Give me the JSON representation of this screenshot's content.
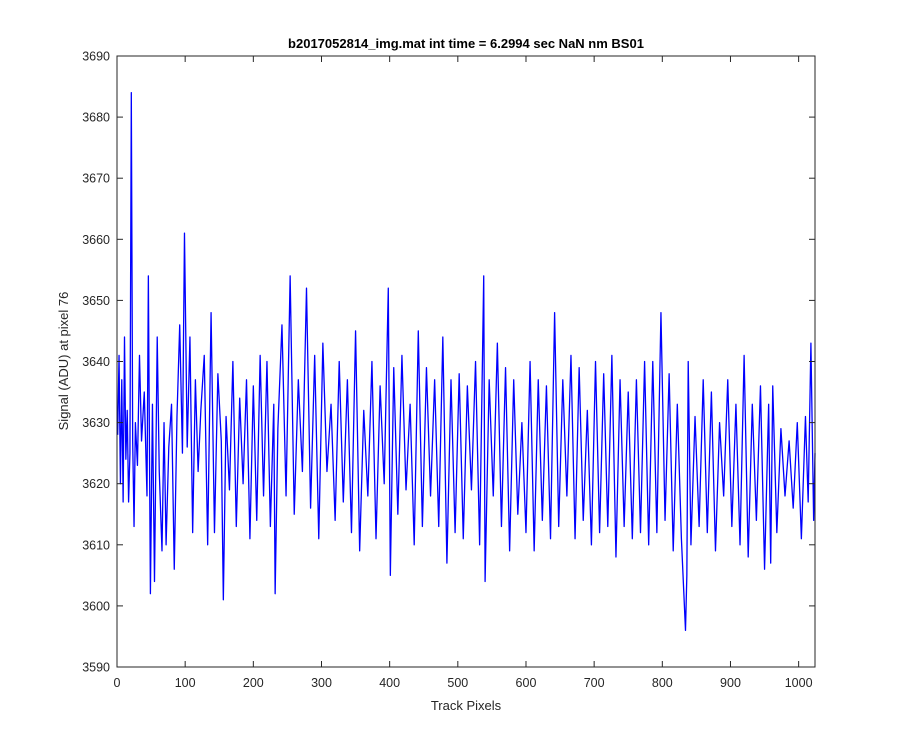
{
  "chart_data": {
    "type": "line",
    "title": "b2017052814_img.mat int time = 6.2994 sec  NaN nm BS01",
    "xlabel": "Track Pixels",
    "ylabel": "Signal (ADU) at pixel 76",
    "xlim": [
      0,
      1024
    ],
    "ylim": [
      3590,
      3690
    ],
    "xticks": [
      0,
      100,
      200,
      300,
      400,
      500,
      600,
      700,
      800,
      900,
      1000
    ],
    "yticks": [
      3590,
      3600,
      3610,
      3620,
      3630,
      3640,
      3650,
      3660,
      3670,
      3680,
      3690
    ],
    "grid": false,
    "line_color": "#0000ff",
    "series": [
      {
        "x": [
          1,
          3,
          5,
          7,
          9,
          11,
          13,
          15,
          17,
          19,
          21,
          23,
          25,
          27,
          30,
          33,
          36,
          40,
          44,
          46,
          49,
          52,
          55,
          59,
          62,
          66,
          69,
          72,
          76,
          80,
          84,
          88,
          92,
          96,
          99,
          103,
          107,
          111,
          115,
          119,
          123,
          128,
          133,
          138,
          143,
          148,
          153,
          156,
          160,
          165,
          170,
          175,
          180,
          185,
          190,
          195,
          200,
          205,
          210,
          215,
          220,
          225,
          230,
          232,
          236,
          242,
          248,
          254,
          260,
          266,
          272,
          278,
          284,
          290,
          296,
          302,
          308,
          314,
          320,
          326,
          332,
          338,
          344,
          350,
          356,
          362,
          368,
          374,
          380,
          386,
          392,
          398,
          401,
          406,
          412,
          418,
          424,
          430,
          436,
          442,
          448,
          454,
          460,
          466,
          472,
          478,
          484,
          490,
          496,
          502,
          508,
          514,
          520,
          526,
          532,
          538,
          540,
          546,
          552,
          558,
          564,
          570,
          576,
          582,
          588,
          594,
          600,
          606,
          612,
          618,
          624,
          630,
          636,
          642,
          648,
          654,
          660,
          666,
          672,
          678,
          684,
          690,
          696,
          702,
          708,
          714,
          720,
          726,
          732,
          738,
          744,
          750,
          756,
          762,
          768,
          774,
          780,
          786,
          792,
          798,
          804,
          810,
          816,
          822,
          828,
          834,
          836,
          838,
          842,
          848,
          854,
          860,
          866,
          872,
          878,
          884,
          890,
          896,
          902,
          908,
          914,
          920,
          926,
          932,
          938,
          944,
          950,
          956,
          959,
          962,
          968,
          974,
          980,
          986,
          992,
          998,
          1004,
          1010,
          1014,
          1018,
          1022,
          1024
        ],
        "y": [
          3628,
          3641,
          3620,
          3637,
          3617,
          3644,
          3624,
          3632,
          3617,
          3625,
          3684,
          3627,
          3613,
          3630,
          3623,
          3641,
          3627,
          3635,
          3618,
          3654,
          3602,
          3633,
          3604,
          3644,
          3622,
          3609,
          3630,
          3610,
          3626,
          3633,
          3606,
          3631,
          3646,
          3625,
          3661,
          3626,
          3644,
          3612,
          3637,
          3622,
          3632,
          3641,
          3610,
          3648,
          3612,
          3638,
          3627,
          3601,
          3631,
          3619,
          3640,
          3613,
          3634,
          3620,
          3637,
          3611,
          3636,
          3614,
          3641,
          3618,
          3640,
          3613,
          3633,
          3602,
          3629,
          3646,
          3618,
          3654,
          3615,
          3637,
          3622,
          3652,
          3616,
          3641,
          3611,
          3643,
          3622,
          3633,
          3614,
          3640,
          3617,
          3637,
          3612,
          3645,
          3609,
          3632,
          3618,
          3640,
          3611,
          3636,
          3620,
          3652,
          3605,
          3639,
          3615,
          3641,
          3619,
          3633,
          3610,
          3645,
          3613,
          3639,
          3618,
          3637,
          3613,
          3644,
          3607,
          3637,
          3612,
          3638,
          3611,
          3636,
          3619,
          3640,
          3610,
          3654,
          3604,
          3637,
          3618,
          3643,
          3613,
          3639,
          3609,
          3637,
          3615,
          3630,
          3612,
          3640,
          3609,
          3637,
          3614,
          3636,
          3611,
          3648,
          3613,
          3637,
          3618,
          3641,
          3611,
          3639,
          3614,
          3632,
          3610,
          3640,
          3612,
          3638,
          3613,
          3641,
          3608,
          3637,
          3613,
          3635,
          3611,
          3637,
          3612,
          3640,
          3610,
          3640,
          3612,
          3648,
          3614,
          3638,
          3609,
          3633,
          3611,
          3596,
          3605,
          3640,
          3610,
          3631,
          3613,
          3637,
          3612,
          3635,
          3609,
          3630,
          3618,
          3637,
          3613,
          3633,
          3610,
          3641,
          3608,
          3633,
          3614,
          3636,
          3606,
          3633,
          3607,
          3636,
          3612,
          3629,
          3618,
          3627,
          3616,
          3630,
          3611,
          3631,
          3617,
          3643,
          3614,
          3625
        ]
      }
    ]
  }
}
